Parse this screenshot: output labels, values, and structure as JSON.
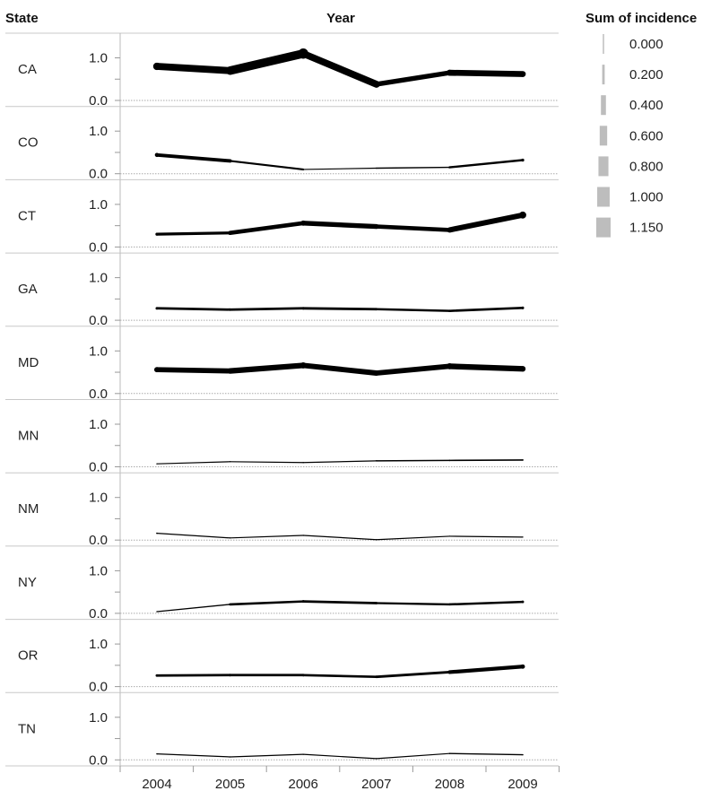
{
  "chart_data": {
    "type": "line",
    "title": "",
    "row_header": "State",
    "column_header": "Year",
    "legend_title": "Sum of incidence",
    "legend_values": [
      "0.000",
      "0.200",
      "0.400",
      "0.600",
      "0.800",
      "1.000",
      "1.150"
    ],
    "legend_encoding": "line thickness",
    "legend_placement": "top-right",
    "x": [
      "2004",
      "2005",
      "2006",
      "2007",
      "2008",
      "2009"
    ],
    "y_ticks": [
      "0.0",
      "1.0"
    ],
    "ylim": [
      0,
      1.2
    ],
    "grid": false,
    "series": [
      {
        "name": "CA",
        "values": [
          0.8,
          0.7,
          1.1,
          0.38,
          0.65,
          0.62
        ]
      },
      {
        "name": "CO",
        "values": [
          0.44,
          0.3,
          0.1,
          0.13,
          0.15,
          0.32
        ]
      },
      {
        "name": "CT",
        "values": [
          0.3,
          0.33,
          0.56,
          0.48,
          0.4,
          0.75
        ]
      },
      {
        "name": "GA",
        "values": [
          0.28,
          0.25,
          0.28,
          0.26,
          0.22,
          0.29
        ]
      },
      {
        "name": "MD",
        "values": [
          0.56,
          0.53,
          0.66,
          0.48,
          0.64,
          0.58
        ]
      },
      {
        "name": "MN",
        "values": [
          0.07,
          0.12,
          0.1,
          0.14,
          0.15,
          0.16
        ]
      },
      {
        "name": "NM",
        "values": [
          0.16,
          0.05,
          0.11,
          0.01,
          0.09,
          0.07
        ]
      },
      {
        "name": "NY",
        "values": [
          0.04,
          0.21,
          0.28,
          0.24,
          0.21,
          0.27
        ]
      },
      {
        "name": "OR",
        "values": [
          0.26,
          0.27,
          0.27,
          0.23,
          0.34,
          0.47
        ]
      },
      {
        "name": "TN",
        "values": [
          0.14,
          0.07,
          0.13,
          0.03,
          0.15,
          0.12
        ]
      }
    ]
  }
}
